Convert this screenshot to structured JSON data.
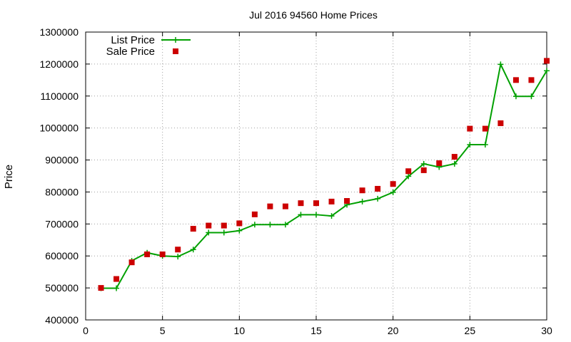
{
  "chart_data": {
    "type": "line",
    "title": "Jul 2016 94560 Home Prices",
    "xlabel": "",
    "ylabel": "Price",
    "xlim": [
      0,
      30
    ],
    "ylim": [
      400000,
      1300000
    ],
    "xticks": [
      0,
      5,
      10,
      15,
      20,
      25,
      30
    ],
    "yticks": [
      400000,
      500000,
      600000,
      700000,
      800000,
      900000,
      1000000,
      1100000,
      1200000,
      1300000
    ],
    "grid": true,
    "legend_position": "top-left",
    "series": [
      {
        "name": "List Price",
        "style": "line-with-plus-markers",
        "color": "#00a000",
        "x": [
          1,
          2,
          3,
          4,
          5,
          6,
          7,
          8,
          9,
          10,
          11,
          12,
          13,
          14,
          15,
          16,
          17,
          18,
          19,
          20,
          21,
          22,
          23,
          24,
          25,
          26,
          27,
          28,
          29,
          30
        ],
        "y": [
          499000,
          499000,
          585000,
          610000,
          600000,
          598000,
          620000,
          673000,
          673000,
          679000,
          698000,
          698000,
          698000,
          729000,
          729000,
          725000,
          760000,
          770000,
          779000,
          799000,
          849000,
          888000,
          878000,
          888000,
          948000,
          948000,
          1199000,
          1099000,
          1099000,
          1179000
        ]
      },
      {
        "name": "Sale Price",
        "style": "square-markers",
        "color": "#cc0000",
        "x": [
          1,
          2,
          3,
          4,
          5,
          6,
          7,
          8,
          9,
          10,
          11,
          12,
          13,
          14,
          15,
          16,
          17,
          18,
          19,
          20,
          21,
          22,
          23,
          24,
          25,
          26,
          27,
          28,
          29,
          30
        ],
        "y": [
          500000,
          528000,
          580000,
          605000,
          605000,
          620000,
          685000,
          695000,
          695000,
          702000,
          730000,
          755000,
          755000,
          765000,
          765000,
          770000,
          772000,
          805000,
          810000,
          825000,
          865000,
          868000,
          890000,
          910000,
          998000,
          998000,
          1015000,
          1150000,
          1150000,
          1210000
        ]
      }
    ]
  }
}
